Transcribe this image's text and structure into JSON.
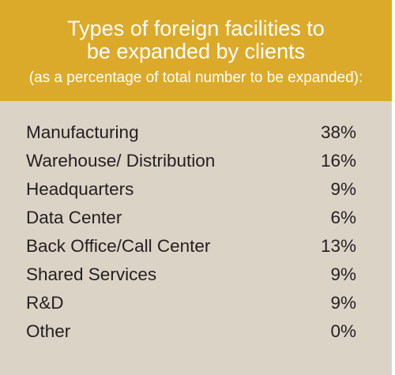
{
  "colors": {
    "header_bg": "#dcaa2a",
    "body_bg": "#dcd3c7",
    "text": "#231f20",
    "header_text": "#ffffff"
  },
  "chart_data": {
    "type": "table",
    "title_line1": "Types of foreign facilities to",
    "title_line2": "be expanded by clients",
    "subtitle": "(as a percentage of total number to be expanded):",
    "rows": [
      {
        "label": "Manufacturing",
        "value": "38%"
      },
      {
        "label": "Warehouse/ Distribution",
        "value": "16%"
      },
      {
        "label": "Headquarters",
        "value": "9%"
      },
      {
        "label": "Data Center",
        "value": "6%"
      },
      {
        "label": "Back Office/Call Center",
        "value": "13%"
      },
      {
        "label": "Shared Services",
        "value": "9%"
      },
      {
        "label": "R&D",
        "value": "9%"
      },
      {
        "label": "Other",
        "value": "0%"
      }
    ]
  }
}
